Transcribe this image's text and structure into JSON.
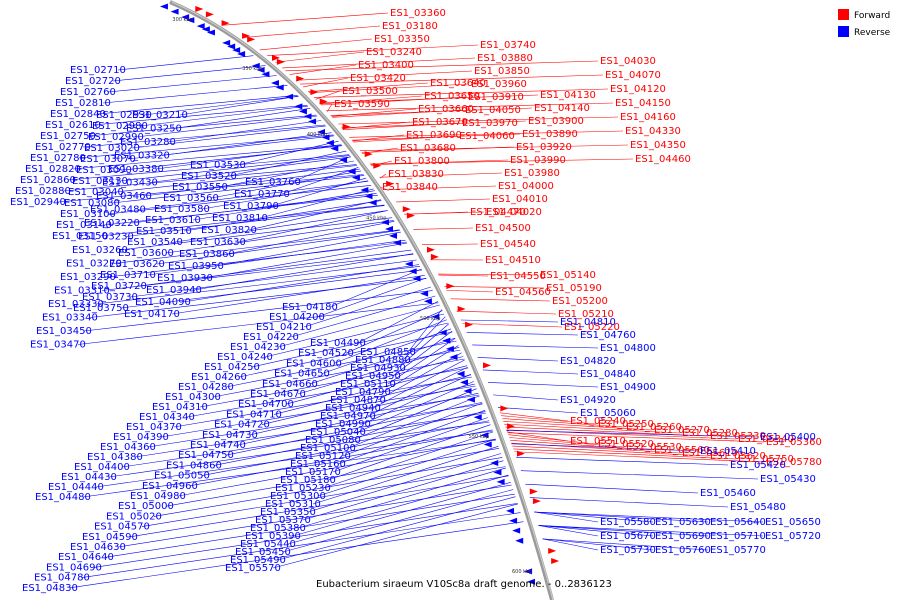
{
  "title": "Eubacterium siraeum V10Sc8a draft genome. - 0..2836123",
  "legend": [
    {
      "label": "Forward",
      "color": "#ff0000"
    },
    {
      "label": "Reverse",
      "color": "#0000ff"
    }
  ],
  "ticks": [
    "300 kbp",
    "350 kbp",
    "400 kbp",
    "450 kbp",
    "500 kbp",
    "550 kbp",
    "600 kbp"
  ],
  "genes_left": [
    "ES1_02710",
    "ES1_02720",
    "ES1_02760",
    "ES1_02810",
    "ES1_02840",
    "ES1_02610",
    "ES1_02750",
    "ES1_02770",
    "ES1_02780",
    "ES1_02820",
    "ES1_02860",
    "ES1_02880",
    "ES1_02940",
    "ES1_02930",
    "ES1_02980",
    "ES1_02990",
    "ES1_03020",
    "ES1_03070",
    "ES1_03090",
    "ES1_03130",
    "ES1_03040",
    "ES1_03080",
    "ES1_03100",
    "ES1_03140",
    "ES1_03150",
    "ES1_03210",
    "ES1_03250",
    "ES1_03280",
    "ES1_03320",
    "ES1_03380",
    "ES1_03430",
    "ES1_03460",
    "ES1_03480",
    "ES1_03220",
    "ES1_03230",
    "ES1_03260",
    "ES1_03270",
    "ES1_03290",
    "ES1_03310",
    "ES1_03330",
    "ES1_03340",
    "ES1_03450",
    "ES1_03470",
    "ES1_03530",
    "ES1_03520",
    "ES1_03550",
    "ES1_03560",
    "ES1_03580",
    "ES1_03610",
    "ES1_03510",
    "ES1_03540",
    "ES1_03600",
    "ES1_03620",
    "ES1_03710",
    "ES1_03720",
    "ES1_03730",
    "ES1_03750",
    "ES1_03760",
    "ES1_03770",
    "ES1_03790",
    "ES1_03810",
    "ES1_03820",
    "ES1_03630",
    "ES1_03860",
    "ES1_03950",
    "ES1_03930",
    "ES1_03940",
    "ES1_04090",
    "ES1_04170",
    "ES1_04180",
    "ES1_04200",
    "ES1_04210",
    "ES1_04220",
    "ES1_04230",
    "ES1_04240",
    "ES1_04250",
    "ES1_04260",
    "ES1_04280",
    "ES1_04300",
    "ES1_04310",
    "ES1_04340",
    "ES1_04370",
    "ES1_04390",
    "ES1_04360",
    "ES1_04380",
    "ES1_04400",
    "ES1_04430",
    "ES1_04440",
    "ES1_04480",
    "ES1_04490",
    "ES1_04520",
    "ES1_04600",
    "ES1_04650",
    "ES1_04660",
    "ES1_04670",
    "ES1_04700",
    "ES1_04710",
    "ES1_04720",
    "ES1_04730",
    "ES1_04740",
    "ES1_04750",
    "ES1_04860",
    "ES1_05050",
    "ES1_04960",
    "ES1_04980",
    "ES1_05000",
    "ES1_05020",
    "ES1_04570",
    "ES1_04590",
    "ES1_04630",
    "ES1_04640",
    "ES1_04690",
    "ES1_04780",
    "ES1_04830",
    "ES1_04850",
    "ES1_04880",
    "ES1_04930",
    "ES1_04950",
    "ES1_05110",
    "ES1_04790",
    "ES1_04870",
    "ES1_04940",
    "ES1_04970",
    "ES1_04990",
    "ES1_05040",
    "ES1_05080",
    "ES1_05100",
    "ES1_05120",
    "ES1_05160",
    "ES1_05170",
    "ES1_05180",
    "ES1_05230",
    "ES1_05300",
    "ES1_05310",
    "ES1_05350",
    "ES1_05370",
    "ES1_05380",
    "ES1_05390",
    "ES1_05440",
    "ES1_05450",
    "ES1_05490",
    "ES1_05570"
  ],
  "genes_right_top": [
    "ES1_03360",
    "ES1_03180",
    "ES1_03350",
    "ES1_03240",
    "ES1_03400",
    "ES1_03420",
    "ES1_03500",
    "ES1_03590",
    "ES1_03640",
    "ES1_03650",
    "ES1_03660",
    "ES1_03670",
    "ES1_03690",
    "ES1_03680",
    "ES1_03800",
    "ES1_03830",
    "ES1_03840",
    "ES1_03740",
    "ES1_03880",
    "ES1_03850",
    "ES1_03960",
    "ES1_03910",
    "ES1_04050",
    "ES1_03970",
    "ES1_04060",
    "ES1_04130",
    "ES1_04140",
    "ES1_03900",
    "ES1_03890",
    "ES1_03920",
    "ES1_03990",
    "ES1_03980",
    "ES1_04000",
    "ES1_04010",
    "ES1_04020",
    "ES1_04030",
    "ES1_04070",
    "ES1_04120",
    "ES1_04150",
    "ES1_04160",
    "ES1_04330",
    "ES1_04350",
    "ES1_04460",
    "ES1_04470",
    "ES1_04500",
    "ES1_04540",
    "ES1_04510",
    "ES1_04550",
    "ES1_04560",
    "ES1_05140",
    "ES1_05190",
    "ES1_05200",
    "ES1_05210",
    "ES1_05220",
    "ES1_05240",
    "ES1_05250",
    "ES1_05260",
    "ES1_05270",
    "ES1_05280",
    "ES1_05330",
    "ES1_05340",
    "ES1_05360",
    "ES1_05510",
    "ES1_05520",
    "ES1_05530",
    "ES1_05560",
    "ES1_05610",
    "ES1_05620",
    "ES1_05750",
    "ES1_05780"
  ],
  "genes_right_blue": [
    "ES1_04810",
    "ES1_04760",
    "ES1_04800",
    "ES1_04820",
    "ES1_04840",
    "ES1_04900",
    "ES1_04920",
    "ES1_05060",
    "ES1_05400",
    "ES1_05410",
    "ES1_05420",
    "ES1_05430",
    "ES1_05460",
    "ES1_05480",
    "ES1_05580",
    "ES1_05630",
    "ES1_05640",
    "ES1_05650",
    "ES1_05670",
    "ES1_05690",
    "ES1_05710",
    "ES1_05720",
    "ES1_05730",
    "ES1_05760",
    "ES1_05770"
  ]
}
